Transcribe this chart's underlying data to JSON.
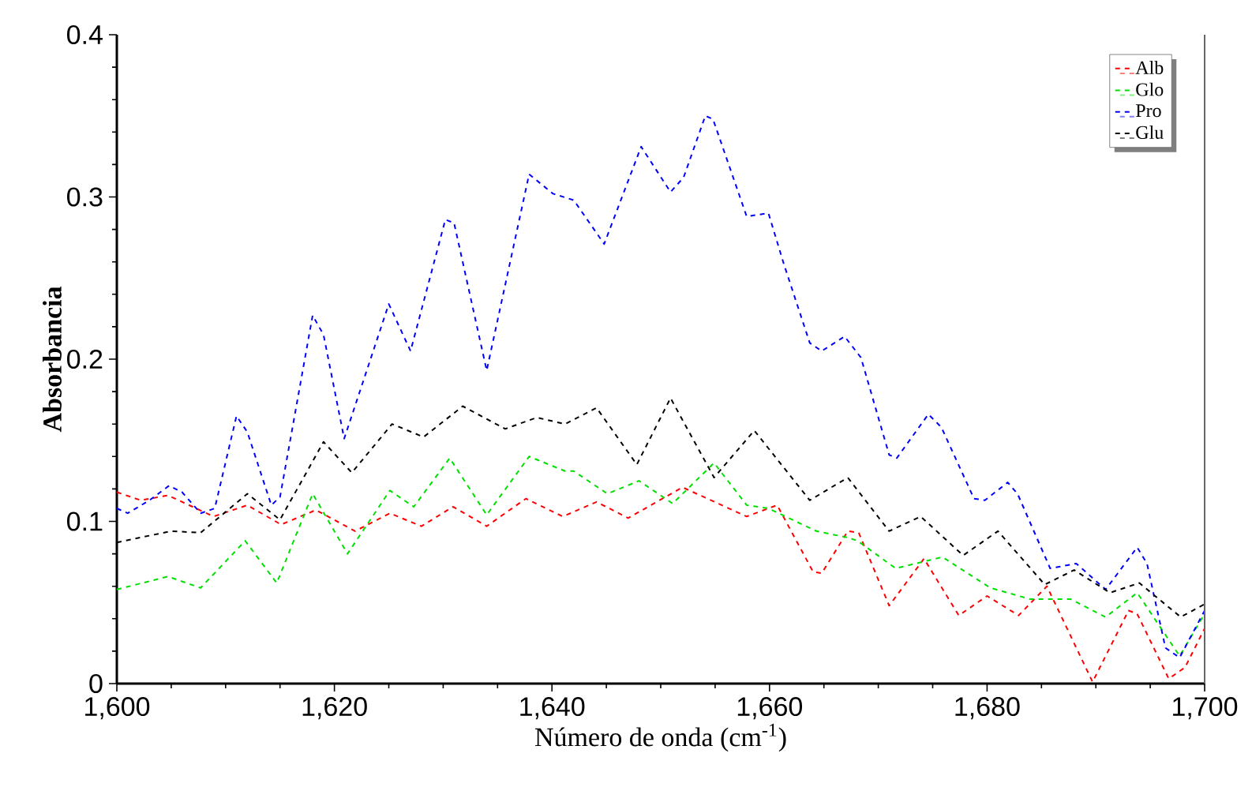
{
  "chart_data": {
    "type": "line",
    "xlabel": "Número de onda (cm$^{-1}$)",
    "ylabel": "Absorbancia",
    "xlim": [
      1600,
      1700
    ],
    "ylim": [
      0,
      0.4
    ],
    "xticks": [
      {
        "value": 1600,
        "label": "1,600"
      },
      {
        "value": 1620,
        "label": "1,620"
      },
      {
        "value": 1640,
        "label": "1,640"
      },
      {
        "value": 1660,
        "label": "1,660"
      },
      {
        "value": 1680,
        "label": "1,680"
      },
      {
        "value": 1700,
        "label": "1,700"
      }
    ],
    "yticks": [
      0,
      0.1,
      0.2,
      0.3,
      0.4
    ],
    "legend": "top right",
    "line_style": "dashed",
    "grid": false,
    "series": [
      {
        "name": "Alb",
        "color": "#ff0000",
        "x": [
          1600,
          1602.2,
          1604.7,
          1608.9,
          1612,
          1615.1,
          1618.3,
          1621.9,
          1625.1,
          1628,
          1630.9,
          1634,
          1637.6,
          1641,
          1644.1,
          1647,
          1652,
          1657.9,
          1660.7,
          1664,
          1664.8,
          1667.2,
          1668.2,
          1671,
          1674.2,
          1677.4,
          1680,
          1682.9,
          1685.5,
          1689.7,
          1693,
          1693.8,
          1696.7,
          1698.2,
          1700
        ],
        "values": [
          0.118,
          0.113,
          0.116,
          0.103,
          0.11,
          0.098,
          0.107,
          0.094,
          0.105,
          0.097,
          0.109,
          0.097,
          0.114,
          0.103,
          0.112,
          0.102,
          0.121,
          0.103,
          0.11,
          0.069,
          0.068,
          0.094,
          0.093,
          0.048,
          0.077,
          0.042,
          0.054,
          0.042,
          0.06,
          0.001,
          0.045,
          0.043,
          0.003,
          0.01,
          0.034
        ]
      },
      {
        "name": "Glo",
        "color": "#00e000",
        "x": [
          1600,
          1604.7,
          1607.7,
          1611.8,
          1614.7,
          1618,
          1621.2,
          1625.1,
          1627.3,
          1630.6,
          1634,
          1637.9,
          1641.2,
          1642,
          1645.1,
          1648,
          1651.1,
          1654.9,
          1657.9,
          1659.9,
          1664.3,
          1667.2,
          1668.1,
          1671.6,
          1675.9,
          1680.3,
          1684,
          1687.7,
          1690.9,
          1693.8,
          1697.7,
          1700
        ],
        "values": [
          0.058,
          0.066,
          0.059,
          0.088,
          0.062,
          0.117,
          0.08,
          0.119,
          0.109,
          0.139,
          0.104,
          0.14,
          0.131,
          0.131,
          0.117,
          0.125,
          0.111,
          0.136,
          0.11,
          0.108,
          0.094,
          0.09,
          0.088,
          0.071,
          0.078,
          0.059,
          0.052,
          0.052,
          0.041,
          0.056,
          0.017,
          0.043
        ]
      },
      {
        "name": "Pro",
        "color": "#0000ff",
        "x": [
          1600,
          1601,
          1603,
          1604.8,
          1606,
          1607.7,
          1609,
          1611,
          1612,
          1614.2,
          1615,
          1618,
          1619,
          1620.9,
          1625,
          1627,
          1630.2,
          1631,
          1634,
          1637.9,
          1640.1,
          1642,
          1644.8,
          1648.2,
          1650.9,
          1652.1,
          1654.1,
          1654.8,
          1657.9,
          1659.9,
          1661.3,
          1663.7,
          1664.8,
          1666.9,
          1668.4,
          1671,
          1671.7,
          1674.6,
          1675.8,
          1678.8,
          1679.8,
          1681.9,
          1682.8,
          1685.8,
          1688.2,
          1690.9,
          1693.8,
          1694.7,
          1696.4,
          1697.7,
          1700
        ],
        "values": [
          0.108,
          0.105,
          0.113,
          0.122,
          0.118,
          0.105,
          0.108,
          0.165,
          0.155,
          0.11,
          0.115,
          0.227,
          0.215,
          0.151,
          0.234,
          0.205,
          0.286,
          0.284,
          0.193,
          0.314,
          0.302,
          0.298,
          0.271,
          0.331,
          0.303,
          0.312,
          0.35,
          0.348,
          0.288,
          0.29,
          0.259,
          0.21,
          0.205,
          0.214,
          0.201,
          0.141,
          0.139,
          0.166,
          0.158,
          0.114,
          0.113,
          0.124,
          0.117,
          0.071,
          0.074,
          0.058,
          0.084,
          0.074,
          0.022,
          0.016,
          0.045
        ]
      },
      {
        "name": "Glu",
        "color": "#000000",
        "x": [
          1600,
          1605,
          1607.7,
          1612,
          1615,
          1619,
          1621.6,
          1625.3,
          1628.2,
          1631.8,
          1635.7,
          1638.6,
          1641.2,
          1644.1,
          1647.8,
          1650.9,
          1654.9,
          1658.6,
          1663.7,
          1667.2,
          1671,
          1673.9,
          1677.8,
          1681,
          1685.3,
          1688,
          1691.3,
          1694,
          1697.8,
          1700
        ],
        "values": [
          0.087,
          0.094,
          0.093,
          0.117,
          0.101,
          0.149,
          0.13,
          0.16,
          0.152,
          0.171,
          0.157,
          0.164,
          0.16,
          0.17,
          0.135,
          0.176,
          0.127,
          0.156,
          0.113,
          0.127,
          0.094,
          0.103,
          0.079,
          0.094,
          0.061,
          0.07,
          0.056,
          0.062,
          0.041,
          0.049
        ]
      }
    ]
  }
}
